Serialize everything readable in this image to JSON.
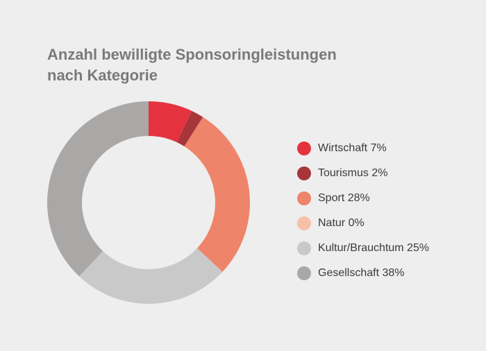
{
  "chart_data": {
    "type": "pie",
    "variant": "donut",
    "title_lines": [
      "Anzahl bewilligte Sponsoringleistungen",
      "nach Kategorie"
    ],
    "series": [
      {
        "label": "Wirtschaft 7%",
        "value": 7,
        "color": "#e4333f"
      },
      {
        "label": "Tourismus 2%",
        "value": 2,
        "color": "#a8353a"
      },
      {
        "label": "Sport 28%",
        "value": 28,
        "color": "#ee846a"
      },
      {
        "label": "Natur 0%",
        "value": 0,
        "color": "#f8bfa9"
      },
      {
        "label": "Kultur/Brauchtum 25%",
        "value": 25,
        "color": "#c9c9c9"
      },
      {
        "label": "Gesellschaft 38%",
        "value": 38,
        "color": "#a9a8a7"
      }
    ],
    "legend_position": "right"
  }
}
